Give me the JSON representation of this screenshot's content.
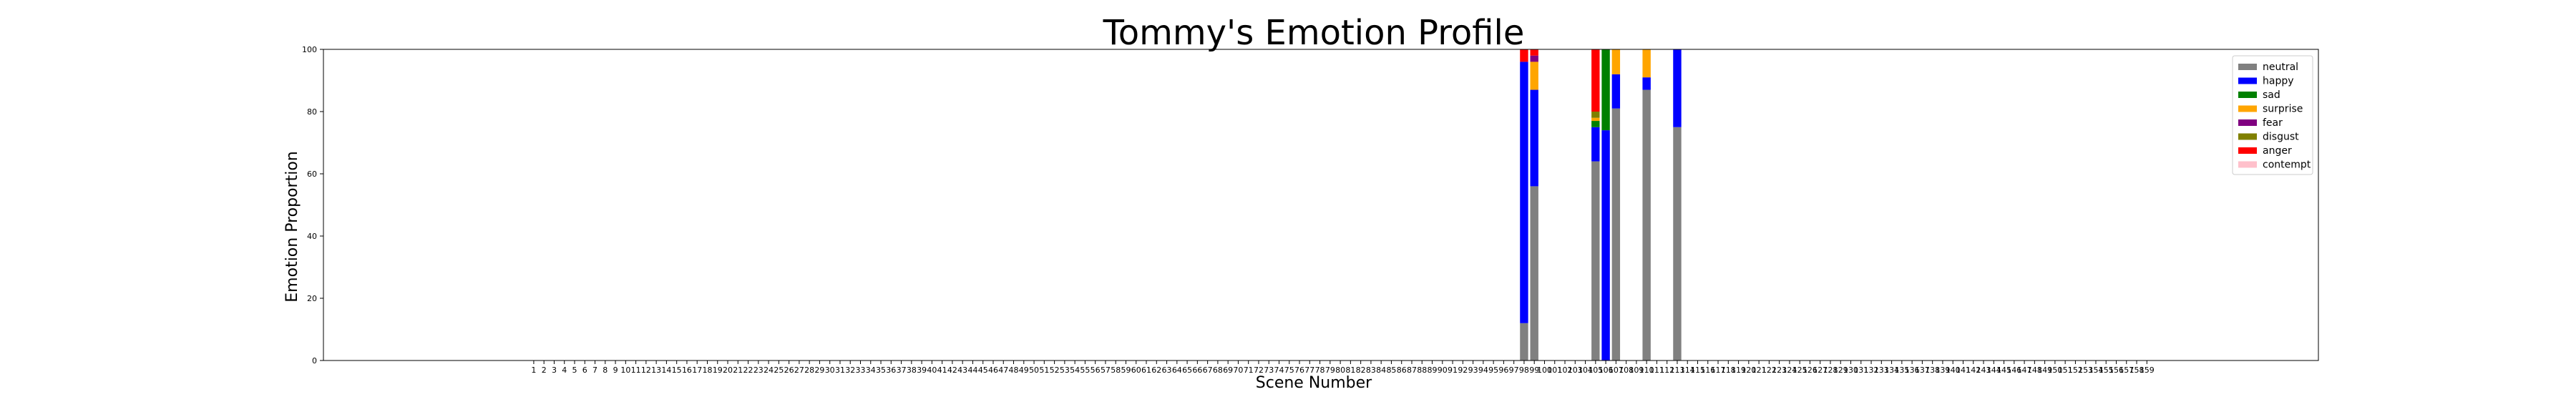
{
  "chart_data": {
    "type": "bar",
    "stacked": true,
    "title": "Tommy's Emotion Profile",
    "xlabel": "Scene Number",
    "ylabel": "Emotion Proportion",
    "ylim": [
      0,
      100
    ],
    "yticks": [
      0,
      20,
      40,
      60,
      80,
      100
    ],
    "x_first": 1,
    "x_last": 159,
    "legend_position": "top-right",
    "grid": false,
    "series": [
      {
        "name": "neutral",
        "color": "#808080"
      },
      {
        "name": "happy",
        "color": "#0000ff"
      },
      {
        "name": "sad",
        "color": "#008000"
      },
      {
        "name": "surprise",
        "color": "#ffa500"
      },
      {
        "name": "fear",
        "color": "#800080"
      },
      {
        "name": "disgust",
        "color": "#808000"
      },
      {
        "name": "anger",
        "color": "#ff0000"
      },
      {
        "name": "contempt",
        "color": "#ffc0cb"
      }
    ],
    "bars": [
      {
        "scene": 98,
        "values": {
          "neutral": 12,
          "happy": 84,
          "sad": 0,
          "surprise": 0,
          "fear": 0,
          "disgust": 0,
          "anger": 4,
          "contempt": 0
        }
      },
      {
        "scene": 99,
        "values": {
          "neutral": 56,
          "happy": 31,
          "sad": 0,
          "surprise": 9,
          "fear": 2,
          "disgust": 0,
          "anger": 2,
          "contempt": 0
        }
      },
      {
        "scene": 105,
        "values": {
          "neutral": 64,
          "happy": 11,
          "sad": 2,
          "surprise": 1,
          "fear": 0,
          "disgust": 2,
          "anger": 20,
          "contempt": 0
        }
      },
      {
        "scene": 106,
        "values": {
          "neutral": 0,
          "happy": 74,
          "sad": 26,
          "surprise": 0,
          "fear": 0,
          "disgust": 0,
          "anger": 0,
          "contempt": 0
        }
      },
      {
        "scene": 107,
        "values": {
          "neutral": 81,
          "happy": 11,
          "sad": 0,
          "surprise": 8,
          "fear": 0,
          "disgust": 0,
          "anger": 0,
          "contempt": 0
        }
      },
      {
        "scene": 110,
        "values": {
          "neutral": 87,
          "happy": 4,
          "sad": 0,
          "surprise": 9,
          "fear": 0,
          "disgust": 0,
          "anger": 0,
          "contempt": 0
        }
      },
      {
        "scene": 113,
        "values": {
          "neutral": 75,
          "happy": 25,
          "sad": 0,
          "surprise": 0,
          "fear": 0,
          "disgust": 0,
          "anger": 0,
          "contempt": 0
        }
      }
    ]
  }
}
